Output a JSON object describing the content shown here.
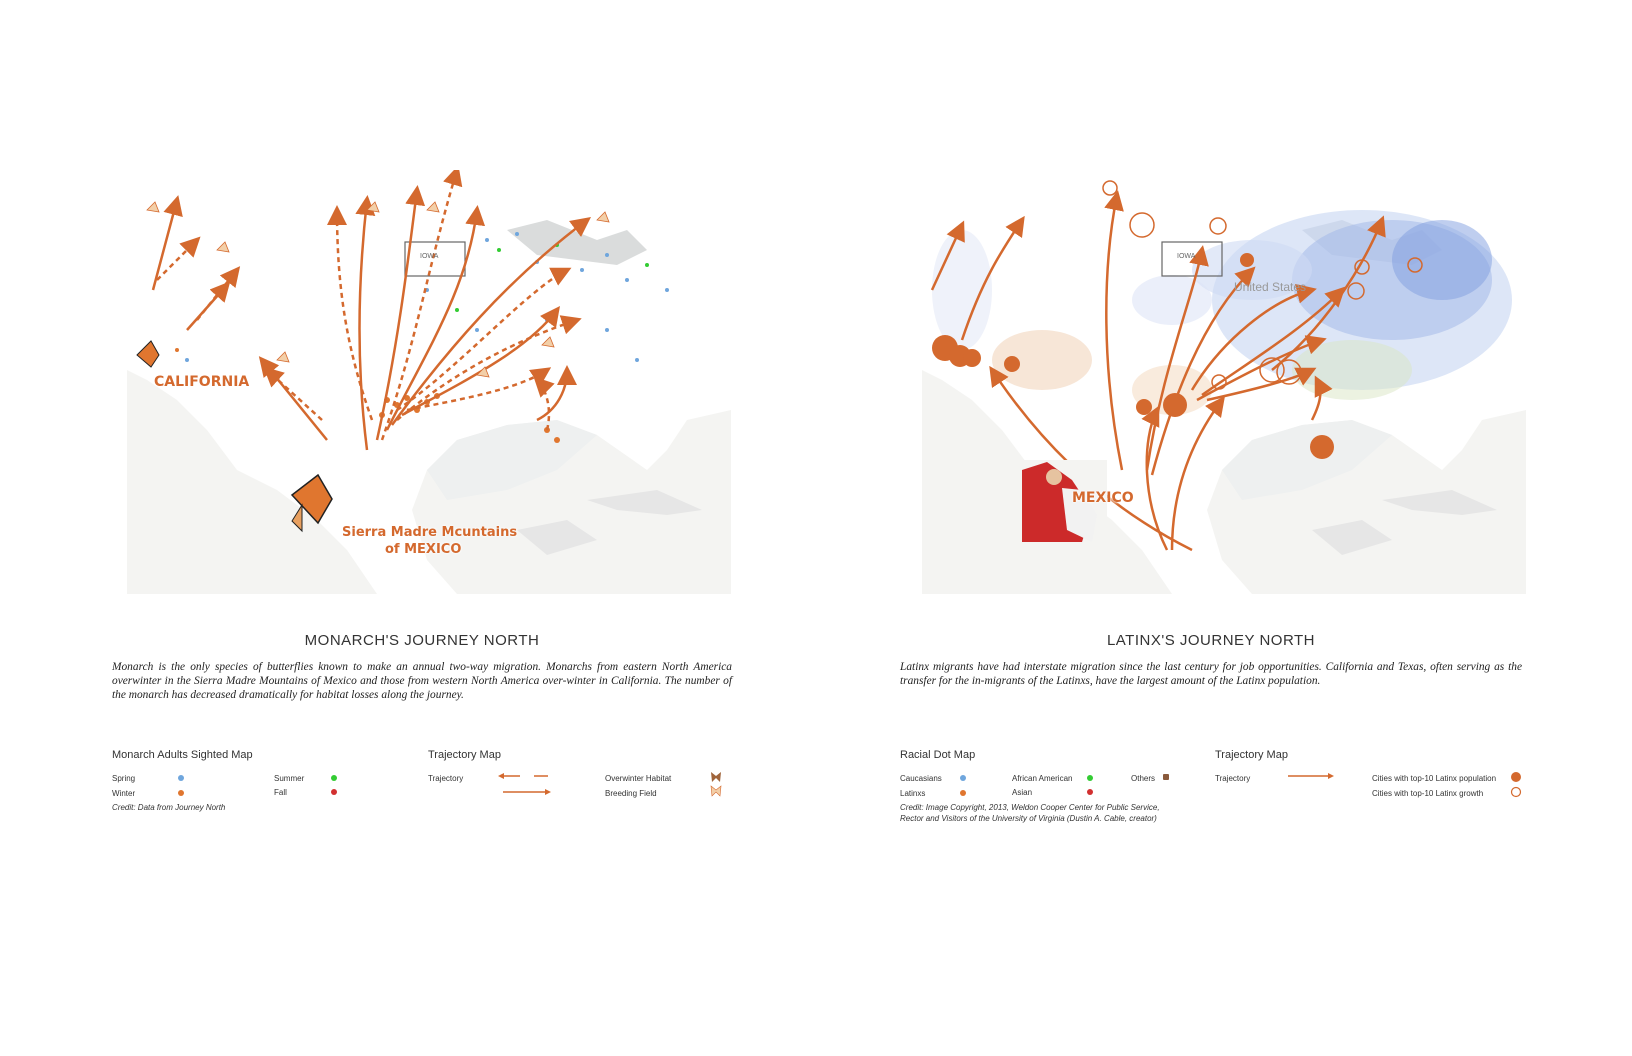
{
  "left": {
    "map_labels": {
      "california": "CALIFORNIA",
      "sierra_line1": "Sierra Madre Mcuntains",
      "sierra_line2": "of MEXICO",
      "iowa": "IOWA"
    },
    "title": "MONARCH'S JOURNEY NORTH",
    "description": "Monarch is the only species of butterflies known to make an annual two-way migration. Monarchs from eastern North America overwinter in the Sierra Madre Mountains of Mexico and those from western North America over-winter in California. The number of the monarch has decreased dramatically for habitat losses along the journey.",
    "legend_sighted": {
      "heading": "Monarch Adults Sighted Map",
      "spring": "Spring",
      "winter": "Winter",
      "summer": "Summer",
      "fall": "Fall",
      "credit": "Credit:  Data from Journey North"
    },
    "legend_trajectory": {
      "heading": "Trajectory Map",
      "trajectory": "Trajectory",
      "overwinter": "Overwinter Habitat",
      "breeding": "Breeding Field"
    }
  },
  "right": {
    "map_labels": {
      "mexico": "MEXICO",
      "iowa": "IOWA",
      "united_states": "United States"
    },
    "title": "LATINX'S JOURNEY NORTH",
    "description": "Latinx migrants have had interstate migration since the last century for job opportunities. California and Texas, often serving as the transfer for the in-migrants of the Latinxs, have the largest amount of the Latinx population.",
    "legend_racial": {
      "heading": "Racial Dot Map",
      "caucasians": "Caucasians",
      "latinxs": "Latinxs",
      "african_american": "African American",
      "asian": "Asian",
      "others": "Others",
      "credit_line1": "Credit: Image Copyright, 2013, Weldon Cooper Center for Public Service,",
      "credit_line2": "Rector and Visitors of the University of Virginia (Dustin A. Cable, creator)"
    },
    "legend_trajectory": {
      "heading": "Trajectory Map",
      "trajectory": "Trajectory",
      "top10_pop": "Cities with top-10 Latinx population",
      "top10_growth": "Cities with top-10 Latinx growth"
    }
  },
  "colors": {
    "accent": "#d4692e",
    "spring": "#6fa6dd",
    "winter": "#e0762f",
    "summer": "#33cc33",
    "fall": "#d23030",
    "caucasians": "#6fa6dd",
    "latinxs": "#e0762f",
    "african_american": "#33cc33",
    "asian": "#d23030",
    "others": "#8a5a3c"
  }
}
